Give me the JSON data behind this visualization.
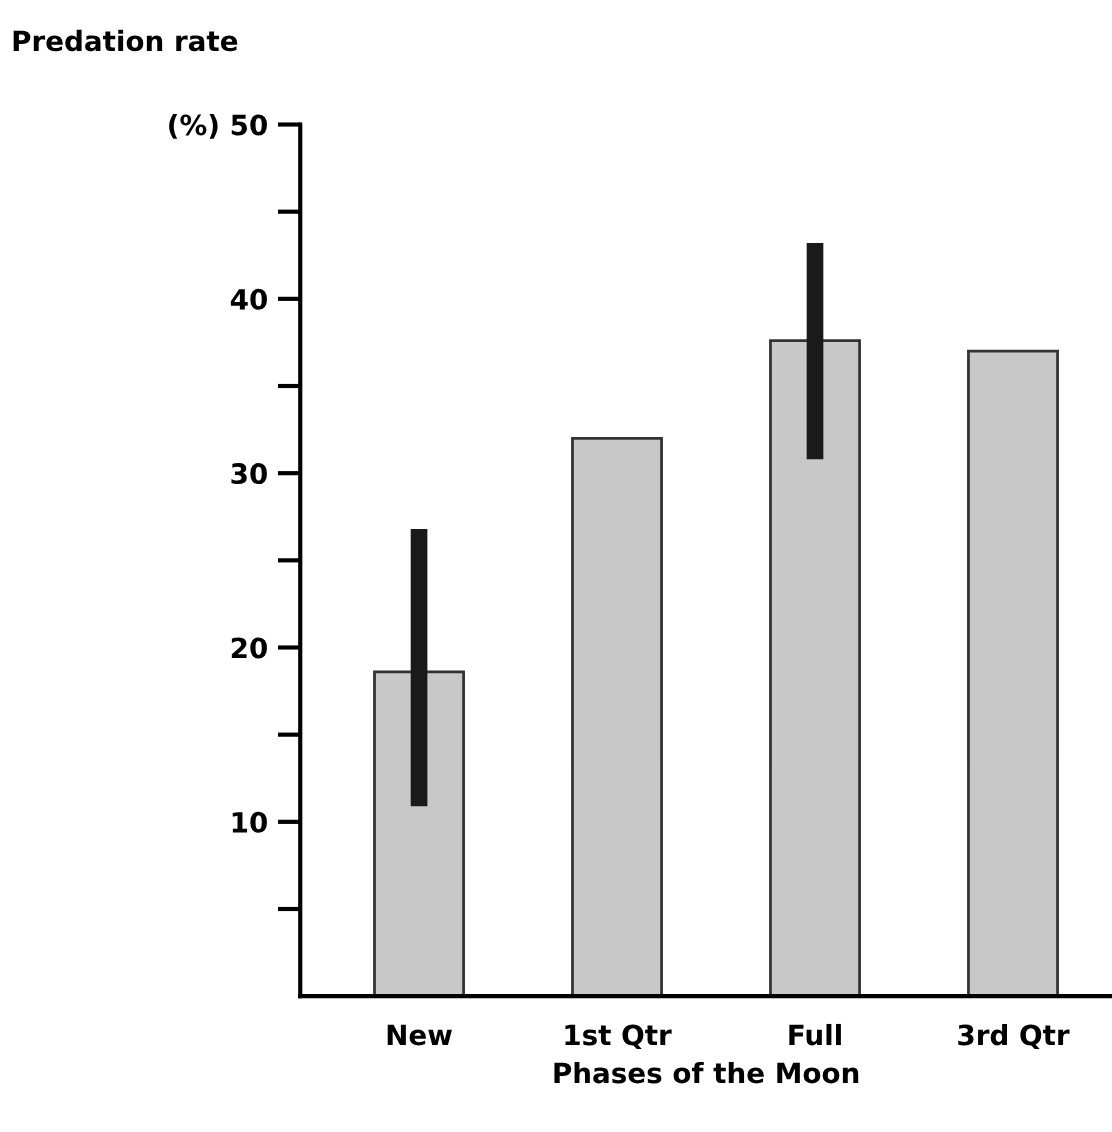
{
  "chart_data": {
    "type": "bar",
    "ylabel": "Predation rate",
    "xlabel": "Phases of the Moon",
    "categories": [
      "New",
      "1st Qtr",
      "Full",
      "3rd Qtr"
    ],
    "values": [
      18.6,
      32.0,
      37.6,
      37.0
    ],
    "errors": [
      [
        10.9,
        26.8
      ],
      null,
      [
        30.8,
        43.2
      ],
      null
    ],
    "color": "#c8c8c8",
    "ylim": [
      0,
      50
    ],
    "yticks": [
      {
        "value": 5,
        "label": null
      },
      10,
      {
        "value": 15,
        "label": null
      },
      20,
      {
        "value": 25,
        "label": null
      },
      30,
      {
        "value": 35,
        "label": null
      },
      40,
      {
        "value": 45,
        "label": null
      },
      {
        "value": 50,
        "label": "(%) 50"
      }
    ],
    "grid": false,
    "legend": false
  }
}
